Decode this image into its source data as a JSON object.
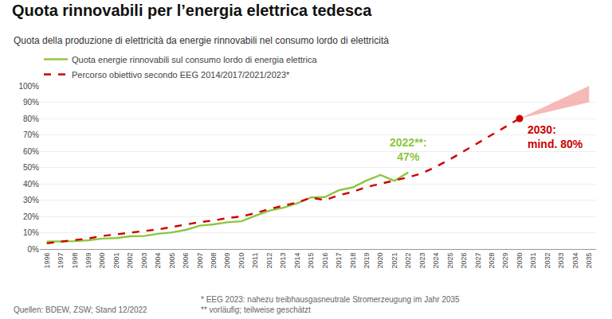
{
  "chart_data": {
    "type": "line",
    "title": "Quota rinnovabili per l’energia elettrica tedesca",
    "subtitle": "Quota della produzione di elettricità da energie rinnovabili nel consumo lordo di elettricità",
    "footnotes": [
      "Quellen: BDEW, ZSW; Stand 12/2022",
      "* EEG 2023: nahezu treibhausgasneutrale Stromerzeugung im Jahr 2035\n** vorläufig; teilweise geschätzt"
    ],
    "series": [
      {
        "name": "Quota energie rinnovabili sul consumo lordo di energia elettrica",
        "type": "line",
        "color": "#8dc63f",
        "x": [
          1996,
          1997,
          1998,
          1999,
          2000,
          2001,
          2002,
          2003,
          2004,
          2005,
          2006,
          2007,
          2008,
          2009,
          2010,
          2011,
          2012,
          2013,
          2014,
          2015,
          2016,
          2017,
          2018,
          2019,
          2020,
          2021,
          2022
        ],
        "values": [
          4.5,
          4.5,
          4.8,
          5.4,
          6.4,
          6.7,
          7.8,
          8.0,
          9.3,
          10.2,
          11.7,
          14.3,
          15.1,
          16.4,
          17.0,
          20.4,
          23.5,
          25.3,
          28.0,
          31.6,
          31.8,
          36.0,
          37.8,
          42.0,
          45.4,
          41.8,
          47.0
        ]
      },
      {
        "name": "Percorso obiettivo secondo EEG 2014/2017/2021/2023*",
        "type": "line",
        "color": "#cc0000",
        "line_style": "dashed",
        "x": [
          1996,
          1997,
          1998,
          1999,
          2000,
          2001,
          2002,
          2003,
          2004,
          2005,
          2006,
          2007,
          2008,
          2009,
          2010,
          2011,
          2012,
          2013,
          2014,
          2015,
          2016,
          2017,
          2018,
          2019,
          2020,
          2021,
          2022,
          2023,
          2024,
          2025,
          2026,
          2027,
          2028,
          2029,
          2030
        ],
        "values": [
          3.5,
          4.5,
          5.5,
          6.5,
          8.0,
          9.0,
          10.0,
          11.0,
          12.0,
          13.5,
          15.0,
          16.5,
          17.5,
          19.0,
          20.0,
          22.0,
          24.5,
          26.5,
          28.5,
          31.5,
          30.0,
          33.0,
          35.0,
          38.0,
          40.0,
          42.0,
          44.0,
          46.5,
          50.5,
          55.0,
          60.0,
          65.0,
          70.0,
          75.0,
          80.0
        ]
      },
      {
        "type": "band",
        "color": "#f4a0a0",
        "x": [
          2030,
          2035
        ],
        "lower": [
          80.0,
          90.0
        ],
        "upper": [
          80.0,
          100.0
        ]
      },
      {
        "type": "scatter",
        "marker": "circle",
        "color": "#cc0000",
        "x": [
          2030
        ],
        "values": [
          80.0
        ]
      }
    ],
    "annotations": [
      {
        "text": "2022**:\n47%",
        "color": "#8dc63f"
      },
      {
        "text": "2030:\nmind. 80%",
        "color": "#cc0000"
      }
    ],
    "xlim": [
      1995.5,
      2035.5
    ],
    "ylim": [
      0,
      100
    ],
    "xticks": [
      1996,
      1997,
      1998,
      1999,
      2000,
      2001,
      2002,
      2003,
      2004,
      2005,
      2006,
      2007,
      2008,
      2009,
      2010,
      2011,
      2012,
      2013,
      2014,
      2015,
      2016,
      2017,
      2018,
      2019,
      2020,
      2021,
      2022,
      2023,
      2024,
      2025,
      2026,
      2027,
      2028,
      2029,
      2030,
      2031,
      2032,
      2033,
      2034,
      2035
    ],
    "yticks": [
      {
        "value": 0,
        "label": "0%"
      },
      {
        "value": 10,
        "label": "10%"
      },
      {
        "value": 20,
        "label": "20%"
      },
      {
        "value": 30,
        "label": "30%"
      },
      {
        "value": 40,
        "label": "40%"
      },
      {
        "value": 50,
        "label": "50%"
      },
      {
        "value": 60,
        "label": "60%"
      },
      {
        "value": 70,
        "label": "70%"
      },
      {
        "value": 80,
        "label": "80%"
      },
      {
        "value": 90,
        "label": "90%"
      },
      {
        "value": 100,
        "label": "100%"
      }
    ],
    "grid": true,
    "legend": "top left"
  }
}
